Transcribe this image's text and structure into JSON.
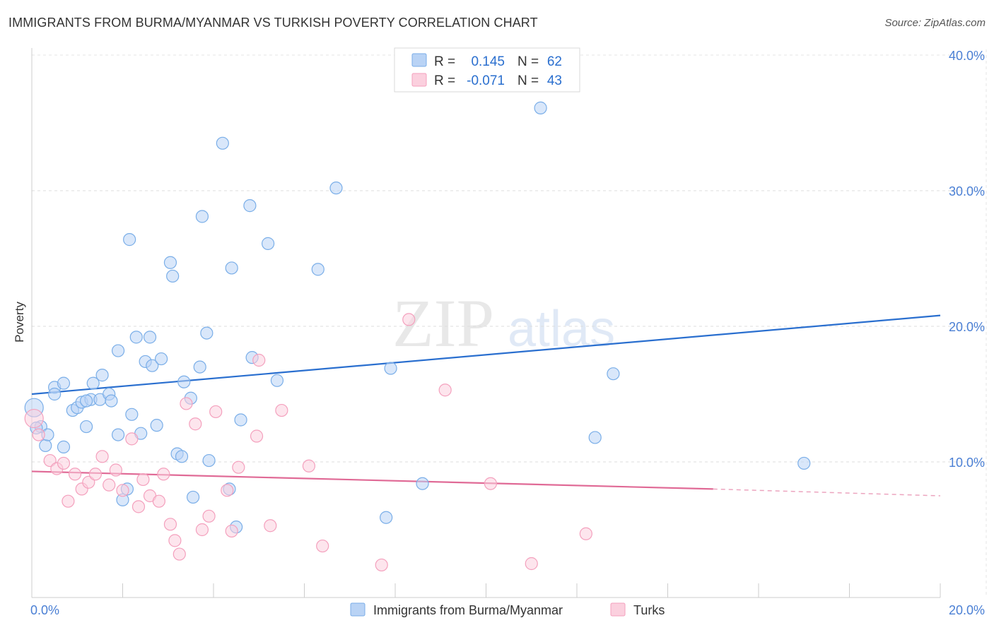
{
  "title": "IMMIGRANTS FROM BURMA/MYANMAR VS TURKISH POVERTY CORRELATION CHART",
  "source": "Source: ZipAtlas.com",
  "watermark": {
    "zip": "ZIP",
    "atlas": "atlas"
  },
  "chart_data": {
    "type": "scatter",
    "ylabel": "Poverty",
    "xlabel": "",
    "xlim": [
      0,
      20
    ],
    "ylim": [
      0,
      40
    ],
    "x_tick_labels": [
      {
        "value": 0,
        "label": "0.0%"
      },
      {
        "value": 20,
        "label": "20.0%"
      }
    ],
    "y_tick_labels": [
      {
        "value": 10,
        "label": "10.0%"
      },
      {
        "value": 20,
        "label": "20.0%"
      },
      {
        "value": 30,
        "label": "30.0%"
      },
      {
        "value": 40,
        "label": "40.0%"
      }
    ],
    "grid": true,
    "stats": [
      {
        "r_label": "R =",
        "r_value": "0.145",
        "n_label": "N =",
        "n_value": "62"
      },
      {
        "r_label": "R =",
        "r_value": "-0.071",
        "n_label": "N =",
        "n_value": "43"
      }
    ],
    "series": [
      {
        "name": "Immigrants from Burma/Myanmar",
        "color": "#7aaee8",
        "line_color": "#2a6fcf",
        "trend": {
          "x0": 0,
          "y0": 15.0,
          "x1": 20,
          "y1": 20.8
        },
        "points": [
          [
            0.05,
            14.0
          ],
          [
            0.2,
            12.6
          ],
          [
            0.3,
            11.2
          ],
          [
            0.35,
            12.0
          ],
          [
            0.5,
            15.5
          ],
          [
            0.5,
            15.0
          ],
          [
            0.7,
            15.8
          ],
          [
            0.7,
            11.1
          ],
          [
            0.9,
            13.8
          ],
          [
            1.0,
            14.0
          ],
          [
            1.1,
            14.4
          ],
          [
            1.2,
            12.6
          ],
          [
            1.3,
            14.6
          ],
          [
            1.35,
            15.8
          ],
          [
            1.5,
            14.6
          ],
          [
            1.55,
            16.4
          ],
          [
            1.7,
            15.0
          ],
          [
            1.75,
            14.5
          ],
          [
            1.9,
            12.0
          ],
          [
            1.9,
            18.2
          ],
          [
            2.0,
            7.2
          ],
          [
            2.1,
            8.0
          ],
          [
            2.15,
            26.4
          ],
          [
            2.2,
            13.5
          ],
          [
            2.3,
            19.2
          ],
          [
            2.4,
            12.1
          ],
          [
            2.5,
            17.4
          ],
          [
            2.6,
            19.2
          ],
          [
            2.65,
            17.1
          ],
          [
            2.75,
            12.7
          ],
          [
            2.85,
            17.6
          ],
          [
            3.05,
            24.7
          ],
          [
            3.1,
            23.7
          ],
          [
            3.2,
            10.6
          ],
          [
            3.3,
            10.4
          ],
          [
            3.35,
            15.9
          ],
          [
            3.5,
            14.7
          ],
          [
            3.55,
            7.4
          ],
          [
            3.7,
            17.0
          ],
          [
            3.75,
            28.1
          ],
          [
            3.85,
            19.5
          ],
          [
            3.9,
            10.1
          ],
          [
            4.2,
            33.5
          ],
          [
            4.4,
            24.3
          ],
          [
            4.35,
            8.0
          ],
          [
            4.5,
            5.2
          ],
          [
            4.6,
            13.1
          ],
          [
            4.8,
            28.9
          ],
          [
            4.85,
            17.7
          ],
          [
            5.2,
            26.1
          ],
          [
            5.4,
            16.0
          ],
          [
            6.3,
            24.2
          ],
          [
            6.7,
            30.2
          ],
          [
            7.8,
            5.9
          ],
          [
            7.9,
            16.9
          ],
          [
            8.6,
            8.4
          ],
          [
            11.2,
            36.1
          ],
          [
            12.4,
            11.8
          ],
          [
            12.8,
            16.5
          ],
          [
            17.0,
            9.9
          ],
          [
            0.1,
            12.5
          ],
          [
            1.2,
            14.5
          ]
        ]
      },
      {
        "name": "Turks",
        "color": "#f4a0bd",
        "line_color": "#e06a96",
        "trend": {
          "x0": 0,
          "y0": 9.3,
          "x1": 15.0,
          "y1": 8.0
        },
        "trend_dashed": {
          "x0": 15.0,
          "y0": 8.0,
          "x1": 20,
          "y1": 7.5
        },
        "points": [
          [
            0.05,
            13.2
          ],
          [
            0.15,
            12.0
          ],
          [
            0.4,
            10.1
          ],
          [
            0.55,
            9.5
          ],
          [
            0.7,
            9.9
          ],
          [
            0.8,
            7.1
          ],
          [
            0.95,
            9.1
          ],
          [
            1.1,
            8.0
          ],
          [
            1.25,
            8.5
          ],
          [
            1.4,
            9.1
          ],
          [
            1.55,
            10.4
          ],
          [
            1.7,
            8.3
          ],
          [
            1.85,
            9.4
          ],
          [
            2.0,
            7.9
          ],
          [
            2.2,
            11.7
          ],
          [
            2.35,
            6.7
          ],
          [
            2.45,
            8.7
          ],
          [
            2.6,
            7.5
          ],
          [
            2.8,
            7.1
          ],
          [
            2.9,
            9.1
          ],
          [
            3.05,
            5.4
          ],
          [
            3.15,
            4.2
          ],
          [
            3.25,
            3.2
          ],
          [
            3.4,
            14.3
          ],
          [
            3.6,
            12.8
          ],
          [
            3.75,
            5.0
          ],
          [
            3.9,
            6.0
          ],
          [
            4.05,
            13.7
          ],
          [
            4.3,
            7.9
          ],
          [
            4.4,
            4.9
          ],
          [
            4.55,
            9.6
          ],
          [
            5.0,
            17.5
          ],
          [
            4.95,
            11.9
          ],
          [
            5.25,
            5.3
          ],
          [
            5.5,
            13.8
          ],
          [
            6.1,
            9.7
          ],
          [
            6.4,
            3.8
          ],
          [
            7.7,
            2.4
          ],
          [
            8.3,
            20.5
          ],
          [
            9.1,
            15.3
          ],
          [
            10.1,
            8.4
          ],
          [
            11.0,
            2.5
          ],
          [
            12.2,
            4.7
          ]
        ]
      }
    ]
  }
}
